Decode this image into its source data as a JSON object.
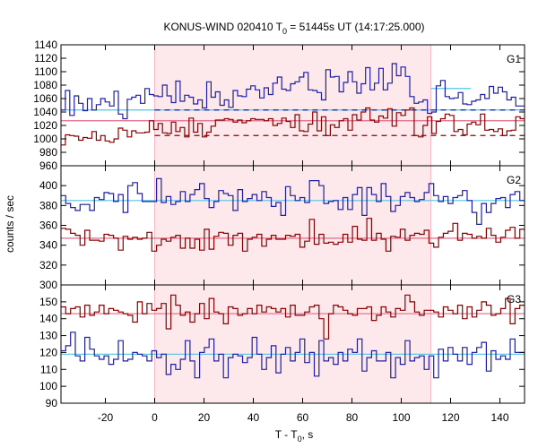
{
  "chart_data": {
    "type": "line",
    "title_main": "KONUS-WIND 020410 T",
    "title_sub": "0",
    "title_rest": " = 51445s UT (14:17:25.000)",
    "xlabel_main": "T - T",
    "xlabel_sub": "0",
    "xlabel_rest": ", s",
    "ylabel": "counts / sec",
    "xlim": [
      -38,
      150
    ],
    "x_ticks": [
      -20,
      0,
      20,
      40,
      60,
      80,
      100,
      120,
      140
    ],
    "highlight_interval": [
      0,
      112
    ],
    "colors": {
      "red_series": "#8b0000",
      "blue_series": "#1f1fa8",
      "red_bg": "#e06a8a",
      "blue_bg": "#4fc6e6",
      "highlight": "#fde8ec"
    },
    "panels": [
      {
        "name": "G1",
        "ylim": [
          960,
          1140
        ],
        "y_ticks": [
          960,
          980,
          1000,
          1020,
          1040,
          1060,
          1080,
          1100,
          1120,
          1140
        ],
        "red_background_level": 1027,
        "red_dashed_level": 1005,
        "blue_background_level": 1043,
        "blue_dashed_level": 1075,
        "blue": [
          1043,
          1072,
          1035,
          1064,
          1053,
          1042,
          1060,
          1043,
          1051,
          1060,
          1055,
          1049,
          1071,
          1037,
          1030,
          1059,
          1062,
          1065,
          1053,
          1075,
          1066,
          1064,
          1063,
          1080,
          1064,
          1054,
          1086,
          1056,
          1065,
          1062,
          1052,
          1058,
          1046,
          1085,
          1062,
          1070,
          1050,
          1058,
          1047,
          1072,
          1064,
          1063,
          1074,
          1079,
          1073,
          1061,
          1076,
          1066,
          1083,
          1092,
          1074,
          1072,
          1082,
          1085,
          1092,
          1099,
          1073,
          1072,
          1069,
          1058,
          1103,
          1092,
          1093,
          1070,
          1084,
          1100,
          1085,
          1068,
          1082,
          1106,
          1073,
          1083,
          1105,
          1073,
          1083,
          1112,
          1094,
          1107,
          1093,
          1063,
          1053,
          1055,
          1058,
          1038,
          1040,
          1079,
          1087,
          1063,
          1060,
          1061,
          1069,
          1052,
          1051,
          1056,
          1058,
          1066,
          1060,
          1078,
          1068,
          1077,
          1070,
          1058,
          1062,
          1049,
          1049
        ],
        "red": [
          991,
          1006,
          1005,
          1004,
          998,
          1002,
          1001,
          1011,
          998,
          1005,
          997,
          995,
          1000,
          1016,
          1013,
          1003,
          1012,
          1009,
          1009,
          1010,
          1027,
          1014,
          1023,
          1009,
          1008,
          1025,
          1011,
          1017,
          1003,
          1031,
          1010,
          1023,
          1003,
          1010,
          1019,
          1028,
          1028,
          1030,
          1029,
          1025,
          1028,
          1024,
          1027,
          1030,
          1029,
          1029,
          1027,
          1030,
          1020,
          1023,
          1031,
          1026,
          1017,
          1036,
          1012,
          1011,
          1022,
          1040,
          1012,
          1033,
          1005,
          1021,
          1017,
          1027,
          1030,
          1013,
          1036,
          1028,
          1040,
          1046,
          1028,
          1025,
          1034,
          1031,
          1045,
          1019,
          1039,
          1035,
          1043,
          1046,
          1005,
          1003,
          1020,
          1033,
          1008,
          1026,
          1030,
          1037,
          1035,
          1011,
          1014,
          1006,
          1022,
          1025,
          1021,
          1037,
          1013,
          1014,
          1011,
          1015,
          1005,
          1012,
          1013,
          1033,
          1030
        ]
      },
      {
        "name": "G2",
        "ylim": [
          300,
          420
        ],
        "y_ticks": [
          300,
          320,
          340,
          360,
          380,
          400
        ],
        "red_background_level": 347,
        "blue_background_level": 385,
        "blue": [
          390,
          382,
          378,
          375,
          381,
          381,
          375,
          388,
          386,
          393,
          392,
          384,
          391,
          373,
          400,
          403,
          392,
          384,
          384,
          384,
          407,
          383,
          389,
          381,
          384,
          394,
          384,
          391,
          396,
          402,
          387,
          378,
          384,
          395,
          392,
          390,
          375,
          396,
          384,
          387,
          391,
          385,
          394,
          388,
          379,
          383,
          370,
          399,
          390,
          385,
          388,
          383,
          405,
          405,
          400,
          382,
          384,
          385,
          376,
          388,
          376,
          391,
          398,
          370,
          398,
          391,
          384,
          402,
          389,
          374,
          380,
          389,
          393,
          388,
          384,
          386,
          393,
          402,
          390,
          384,
          389,
          382,
          388,
          390,
          395,
          385,
          373,
          361,
          382,
          373,
          382,
          387,
          388,
          378,
          391,
          394,
          385
        ],
        "red": [
          357,
          356,
          352,
          350,
          340,
          355,
          345,
          345,
          344,
          351,
          350,
          347,
          335,
          349,
          346,
          348,
          346,
          347,
          353,
          334,
          340,
          346,
          344,
          348,
          350,
          337,
          347,
          337,
          346,
          335,
          356,
          336,
          349,
          353,
          352,
          340,
          350,
          352,
          334,
          346,
          348,
          351,
          339,
          346,
          350,
          346,
          346,
          350,
          349,
          351,
          338,
          344,
          366,
          341,
          351,
          342,
          343,
          341,
          343,
          351,
          343,
          359,
          346,
          345,
          367,
          345,
          352,
          346,
          334,
          349,
          348,
          356,
          345,
          350,
          352,
          351,
          355,
          342,
          338,
          348,
          352,
          354,
          362,
          345,
          352,
          351,
          347,
          349,
          347,
          357,
          350,
          343,
          348,
          355,
          358,
          347,
          356
        ]
      },
      {
        "name": "G3",
        "ylim": [
          90,
          160
        ],
        "y_ticks": [
          90,
          100,
          110,
          120,
          130,
          140,
          150
        ],
        "red_background_level": 143,
        "blue_background_level": 119,
        "blue": [
          121,
          124,
          132,
          118,
          115,
          129,
          122,
          118,
          116,
          118,
          113,
          116,
          127,
          115,
          116,
          120,
          119,
          118,
          115,
          121,
          117,
          119,
          107,
          113,
          110,
          116,
          127,
          115,
          105,
          120,
          123,
          128,
          115,
          119,
          105,
          117,
          119,
          118,
          114,
          117,
          129,
          119,
          110,
          117,
          124,
          108,
          119,
          123,
          115,
          120,
          128,
          114,
          120,
          106,
          127,
          115,
          117,
          113,
          120,
          115,
          122,
          120,
          128,
          109,
          117,
          121,
          115,
          115,
          120,
          105,
          117,
          113,
          127,
          115,
          117,
          118,
          110,
          118,
          105,
          122,
          115,
          123,
          119,
          115,
          123,
          113,
          120,
          123,
          126,
          109,
          121,
          116,
          118,
          116,
          128,
          120,
          120
        ],
        "red": [
          147,
          143,
          146,
          147,
          141,
          148,
          142,
          144,
          148,
          143,
          146,
          145,
          144,
          143,
          142,
          138,
          150,
          143,
          149,
          145,
          146,
          149,
          134,
          154,
          148,
          142,
          144,
          138,
          143,
          149,
          140,
          152,
          144,
          143,
          137,
          147,
          146,
          142,
          143,
          146,
          143,
          148,
          144,
          147,
          146,
          144,
          146,
          141,
          148,
          142,
          142,
          144,
          147,
          148,
          140,
          128,
          143,
          148,
          147,
          145,
          143,
          142,
          146,
          146,
          147,
          139,
          142,
          147,
          144,
          141,
          146,
          145,
          154,
          150,
          144,
          142,
          145,
          145,
          144,
          141,
          147,
          145,
          143,
          148,
          140,
          147,
          141,
          145,
          150,
          148,
          142,
          143,
          146,
          152,
          137,
          146,
          148
        ]
      }
    ]
  }
}
